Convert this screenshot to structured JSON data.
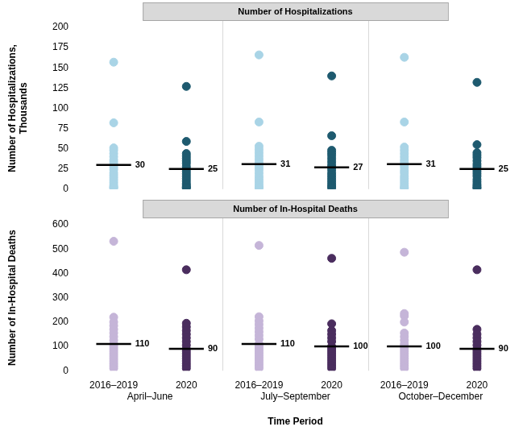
{
  "chart_data": [
    {
      "type": "scatter",
      "title": "Number of Hospitalizations",
      "ylabel": [
        "Number of Hospitalizations,",
        "Thousands"
      ],
      "categories": [
        "2016–2019",
        "2020",
        "2016–2019",
        "2020",
        "2016–2019",
        "2020"
      ],
      "colors": [
        "#a9d4e6",
        "#1e5a6f",
        "#a9d4e6",
        "#1e5a6f",
        "#a9d4e6",
        "#1e5a6f"
      ],
      "values": [
        [
          157,
          82,
          51,
          48,
          44,
          40,
          36,
          33,
          30,
          27,
          24,
          20,
          17,
          14,
          11,
          8,
          5,
          3,
          2,
          1
        ],
        [
          127,
          59,
          44,
          41,
          38,
          35,
          32,
          28,
          25,
          22,
          19,
          16,
          13,
          10,
          7,
          5,
          3,
          2,
          1
        ],
        [
          166,
          83,
          53,
          49,
          45,
          41,
          37,
          33,
          30,
          27,
          24,
          20,
          16,
          13,
          10,
          7,
          4,
          2,
          1
        ],
        [
          140,
          66,
          48,
          45,
          42,
          38,
          34,
          30,
          27,
          24,
          20,
          17,
          14,
          11,
          8,
          5,
          3,
          1
        ],
        [
          163,
          83,
          52,
          48,
          44,
          40,
          36,
          33,
          30,
          27,
          23,
          20,
          16,
          13,
          10,
          7,
          4,
          2,
          1
        ],
        [
          132,
          55,
          45,
          42,
          39,
          35,
          31,
          28,
          25,
          22,
          19,
          16,
          12,
          9,
          6,
          4,
          2,
          1
        ]
      ],
      "medians": [
        30,
        25,
        31,
        27,
        31,
        25
      ],
      "ylim": [
        0,
        200
      ],
      "yticks": [
        0,
        25,
        50,
        75,
        100,
        125,
        150,
        175,
        200
      ],
      "grid": false,
      "tick_labels": "y",
      "marker": "circle"
    },
    {
      "type": "scatter",
      "title": "Number of In-Hospital Deaths",
      "ylabel": "Number of In-Hospital Deaths",
      "xlabel": "Time Period",
      "categories": [
        "2016–2019",
        "2020",
        "2016–2019",
        "2020",
        "2016–2019",
        "2020"
      ],
      "groups": [
        "April–June",
        "July–September",
        "October–December"
      ],
      "colors": [
        "#c5b5d8",
        "#4a2d5e",
        "#c5b5d8",
        "#4a2d5e",
        "#c5b5d8",
        "#4a2d5e"
      ],
      "values": [
        [
          532,
          220,
          200,
          185,
          170,
          155,
          140,
          125,
          110,
          100,
          90,
          80,
          70,
          60,
          50,
          40,
          30,
          20,
          10
        ],
        [
          415,
          195,
          180,
          165,
          150,
          135,
          120,
          105,
          90,
          80,
          70,
          60,
          50,
          40,
          30,
          20,
          10
        ],
        [
          515,
          222,
          205,
          190,
          175,
          160,
          145,
          130,
          110,
          100,
          90,
          80,
          70,
          60,
          50,
          40,
          30,
          20,
          10
        ],
        [
          462,
          193,
          165,
          150,
          135,
          120,
          100,
          90,
          80,
          70,
          60,
          50,
          40,
          30,
          20,
          10
        ],
        [
          487,
          235,
          225,
          200,
          155,
          140,
          125,
          110,
          100,
          90,
          80,
          70,
          60,
          50,
          40,
          30,
          20,
          10
        ],
        [
          415,
          170,
          150,
          135,
          120,
          105,
          90,
          80,
          70,
          60,
          50,
          40,
          30,
          20,
          10
        ]
      ],
      "medians": [
        110,
        90,
        110,
        100,
        100,
        90
      ],
      "ylim": [
        0,
        600
      ],
      "yticks": [
        0,
        100,
        200,
        300,
        400,
        500,
        600
      ],
      "grid": false,
      "marker": "circle"
    }
  ]
}
